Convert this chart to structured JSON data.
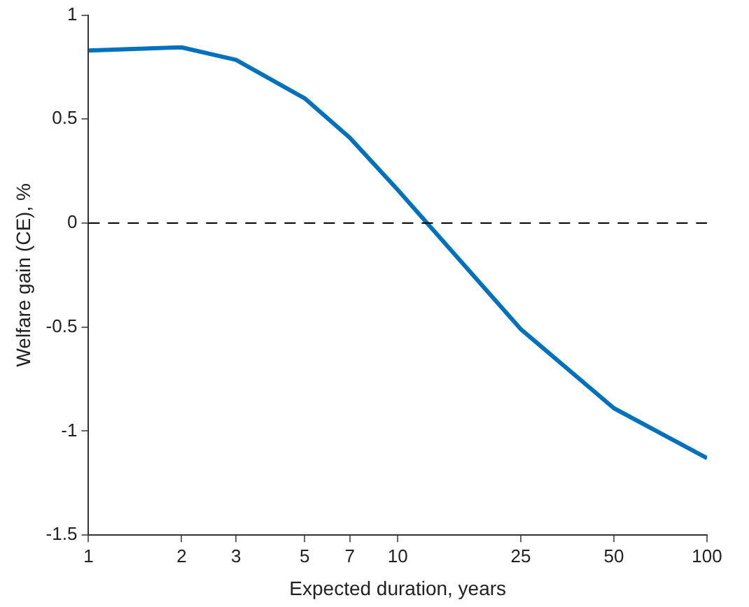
{
  "chart_data": {
    "type": "line",
    "xlabel": "Expected duration, years",
    "ylabel": "Welfare gain (CE), %",
    "x": [
      1,
      2,
      3,
      5,
      7,
      10,
      25,
      50,
      100
    ],
    "series": [
      {
        "color": "#0072bd",
        "values": [
          0.83,
          0.845,
          0.785,
          0.6,
          0.41,
          0.16,
          -0.51,
          -0.89,
          -1.13
        ]
      }
    ],
    "log": "x",
    "xlim": [
      1,
      100
    ],
    "xticks": [
      1,
      2,
      3,
      5,
      7,
      10,
      25,
      50,
      100
    ],
    "ylim": [
      -1.5,
      1
    ],
    "yticks": [
      -1.5,
      -1,
      -0.5,
      0,
      0.5,
      1
    ],
    "ref_lines": [
      {
        "axis": "y",
        "value": 0,
        "color": "#000000",
        "line_style": "dashed"
      }
    ],
    "grid": false,
    "legend": false,
    "marker": "none",
    "line_style": "solid"
  }
}
